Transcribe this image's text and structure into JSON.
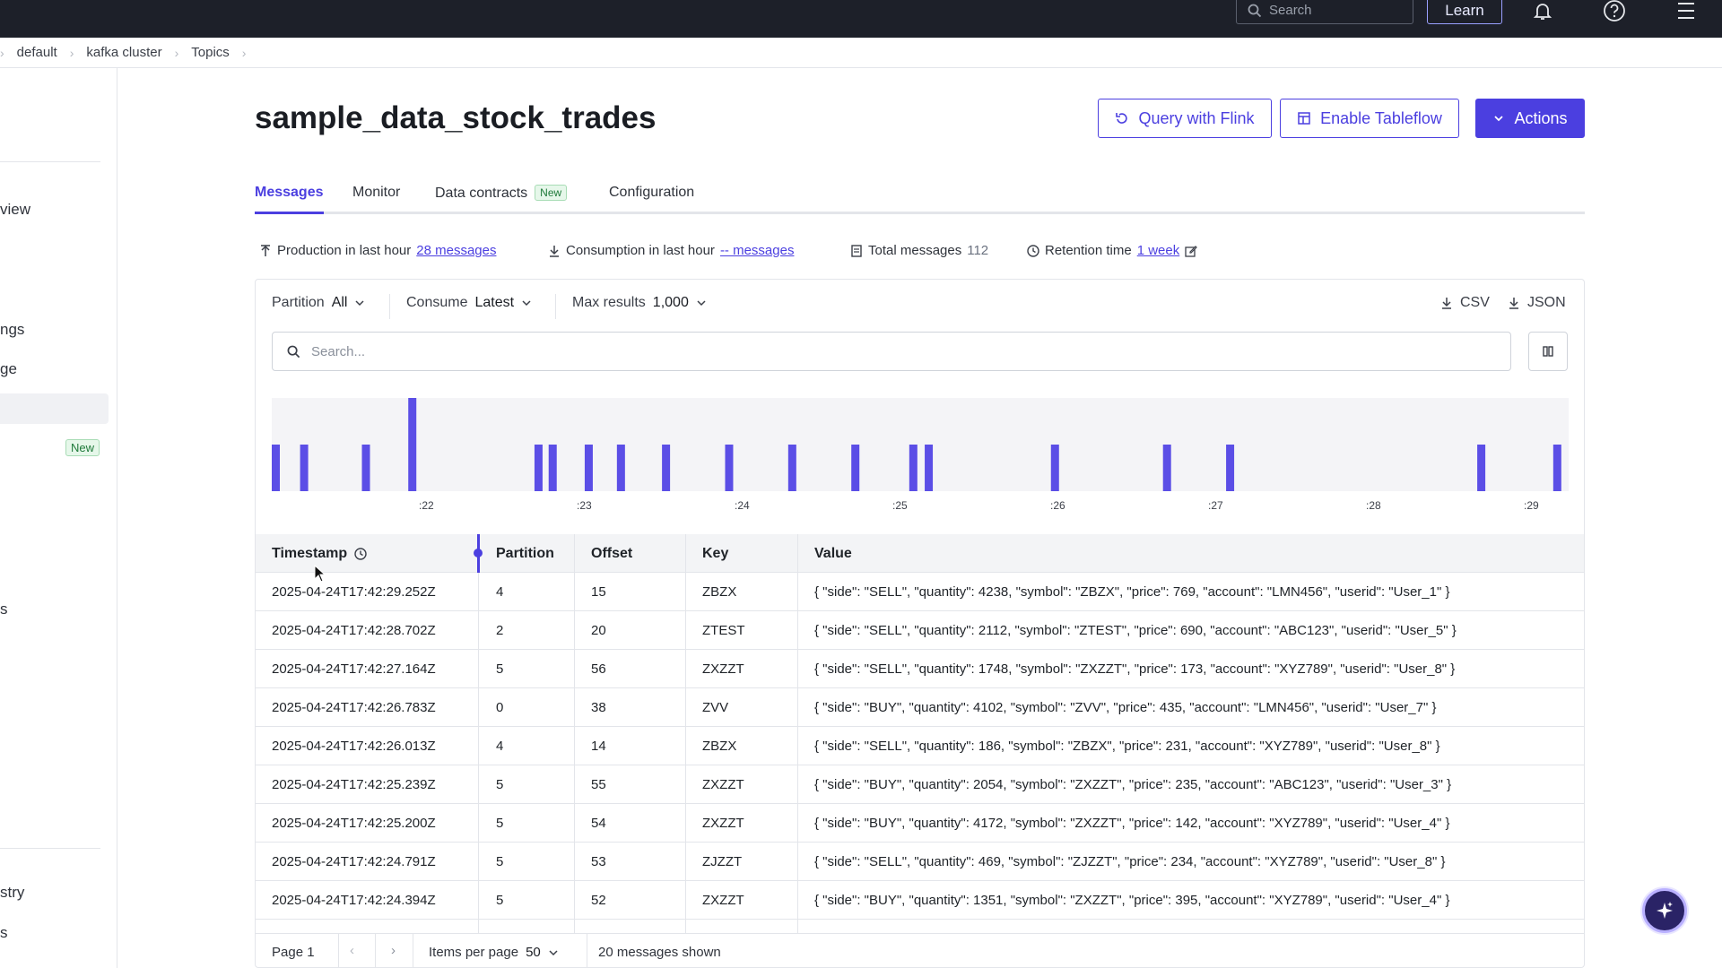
{
  "topbar": {
    "search_placeholder": "Search",
    "learn_label": "Learn"
  },
  "breadcrumb": [
    "default",
    "kafka cluster",
    "Topics"
  ],
  "sidebar": {
    "items": [
      {
        "label": "view"
      },
      {
        "label": "ngs"
      },
      {
        "label": "ge"
      },
      {
        "label": "s"
      },
      {
        "label": "stry"
      },
      {
        "label": "s"
      }
    ],
    "new_badge": "New"
  },
  "topic": {
    "title": "sample_data_stock_trades"
  },
  "actions": {
    "query_flink": "Query with Flink",
    "enable_tableflow": "Enable Tableflow",
    "actions": "Actions"
  },
  "tabs": [
    {
      "label": "Messages",
      "active": true
    },
    {
      "label": "Monitor"
    },
    {
      "label": "Data contracts",
      "badge": "New"
    },
    {
      "label": "Configuration"
    }
  ],
  "stats": {
    "production_label": "Production in last hour",
    "production_value": "28 messages",
    "consumption_label": "Consumption in last hour",
    "consumption_value": "-- messages",
    "total_label": "Total messages",
    "total_value": "112",
    "retention_label": "Retention time",
    "retention_value": "1 week"
  },
  "filters": {
    "partition_label": "Partition",
    "partition_value": "All",
    "consume_label": "Consume",
    "consume_value": "Latest",
    "max_label": "Max results",
    "max_value": "1,000",
    "csv": "CSV",
    "json": "JSON",
    "search_placeholder": "Search..."
  },
  "histogram": {
    "ticks": [
      ":22",
      ":23",
      ":24",
      ":25",
      ":26",
      ":27",
      ":28",
      ":29"
    ],
    "bars": [
      {
        "pos": 0.0,
        "value": 1
      },
      {
        "pos": 0.022,
        "value": 1
      },
      {
        "pos": 0.07,
        "value": 1
      },
      {
        "pos": 0.106,
        "value": 2
      },
      {
        "pos": 0.204,
        "value": 1
      },
      {
        "pos": 0.215,
        "value": 1
      },
      {
        "pos": 0.243,
        "value": 1
      },
      {
        "pos": 0.268,
        "value": 1
      },
      {
        "pos": 0.303,
        "value": 1
      },
      {
        "pos": 0.352,
        "value": 1
      },
      {
        "pos": 0.401,
        "value": 1
      },
      {
        "pos": 0.45,
        "value": 1
      },
      {
        "pos": 0.495,
        "value": 1
      },
      {
        "pos": 0.507,
        "value": 1
      },
      {
        "pos": 0.605,
        "value": 1
      },
      {
        "pos": 0.692,
        "value": 1
      },
      {
        "pos": 0.741,
        "value": 1
      },
      {
        "pos": 0.936,
        "value": 1
      },
      {
        "pos": 0.995,
        "value": 1
      }
    ],
    "max": 2
  },
  "table": {
    "headers": [
      "Timestamp",
      "Partition",
      "Offset",
      "Key",
      "Value"
    ],
    "rows": [
      [
        "2025-04-24T17:42:29.252Z",
        "4",
        "15",
        "ZBZX",
        "{ \"side\": \"SELL\", \"quantity\": 4238, \"symbol\": \"ZBZX\", \"price\": 769, \"account\": \"LMN456\", \"userid\": \"User_1\" }"
      ],
      [
        "2025-04-24T17:42:28.702Z",
        "2",
        "20",
        "ZTEST",
        "{ \"side\": \"SELL\", \"quantity\": 2112, \"symbol\": \"ZTEST\", \"price\": 690, \"account\": \"ABC123\", \"userid\": \"User_5\" }"
      ],
      [
        "2025-04-24T17:42:27.164Z",
        "5",
        "56",
        "ZXZZT",
        "{ \"side\": \"SELL\", \"quantity\": 1748, \"symbol\": \"ZXZZT\", \"price\": 173, \"account\": \"XYZ789\", \"userid\": \"User_8\" }"
      ],
      [
        "2025-04-24T17:42:26.783Z",
        "0",
        "38",
        "ZVV",
        "{ \"side\": \"BUY\", \"quantity\": 4102, \"symbol\": \"ZVV\", \"price\": 435, \"account\": \"LMN456\", \"userid\": \"User_7\" }"
      ],
      [
        "2025-04-24T17:42:26.013Z",
        "4",
        "14",
        "ZBZX",
        "{ \"side\": \"SELL\", \"quantity\": 186, \"symbol\": \"ZBZX\", \"price\": 231, \"account\": \"XYZ789\", \"userid\": \"User_8\" }"
      ],
      [
        "2025-04-24T17:42:25.239Z",
        "5",
        "55",
        "ZXZZT",
        "{ \"side\": \"BUY\", \"quantity\": 2054, \"symbol\": \"ZXZZT\", \"price\": 235, \"account\": \"ABC123\", \"userid\": \"User_3\" }"
      ],
      [
        "2025-04-24T17:42:25.200Z",
        "5",
        "54",
        "ZXZZT",
        "{ \"side\": \"BUY\", \"quantity\": 4172, \"symbol\": \"ZXZZT\", \"price\": 142, \"account\": \"XYZ789\", \"userid\": \"User_4\" }"
      ],
      [
        "2025-04-24T17:42:24.791Z",
        "5",
        "53",
        "ZJZZT",
        "{ \"side\": \"SELL\", \"quantity\": 469, \"symbol\": \"ZJZZT\", \"price\": 234, \"account\": \"XYZ789\", \"userid\": \"User_8\" }"
      ],
      [
        "2025-04-24T17:42:24.394Z",
        "5",
        "52",
        "ZXZZT",
        "{ \"side\": \"BUY\", \"quantity\": 1351, \"symbol\": \"ZXZZT\", \"price\": 395, \"account\": \"XYZ789\", \"userid\": \"User_4\" }"
      ]
    ]
  },
  "pager": {
    "page": "Page 1",
    "items_label": "Items per page",
    "items_value": "50",
    "shown": "20 messages shown"
  },
  "colors": {
    "accent": "#4b3fe0",
    "topbar": "#1d2029",
    "bar": "#5b4ee6"
  }
}
